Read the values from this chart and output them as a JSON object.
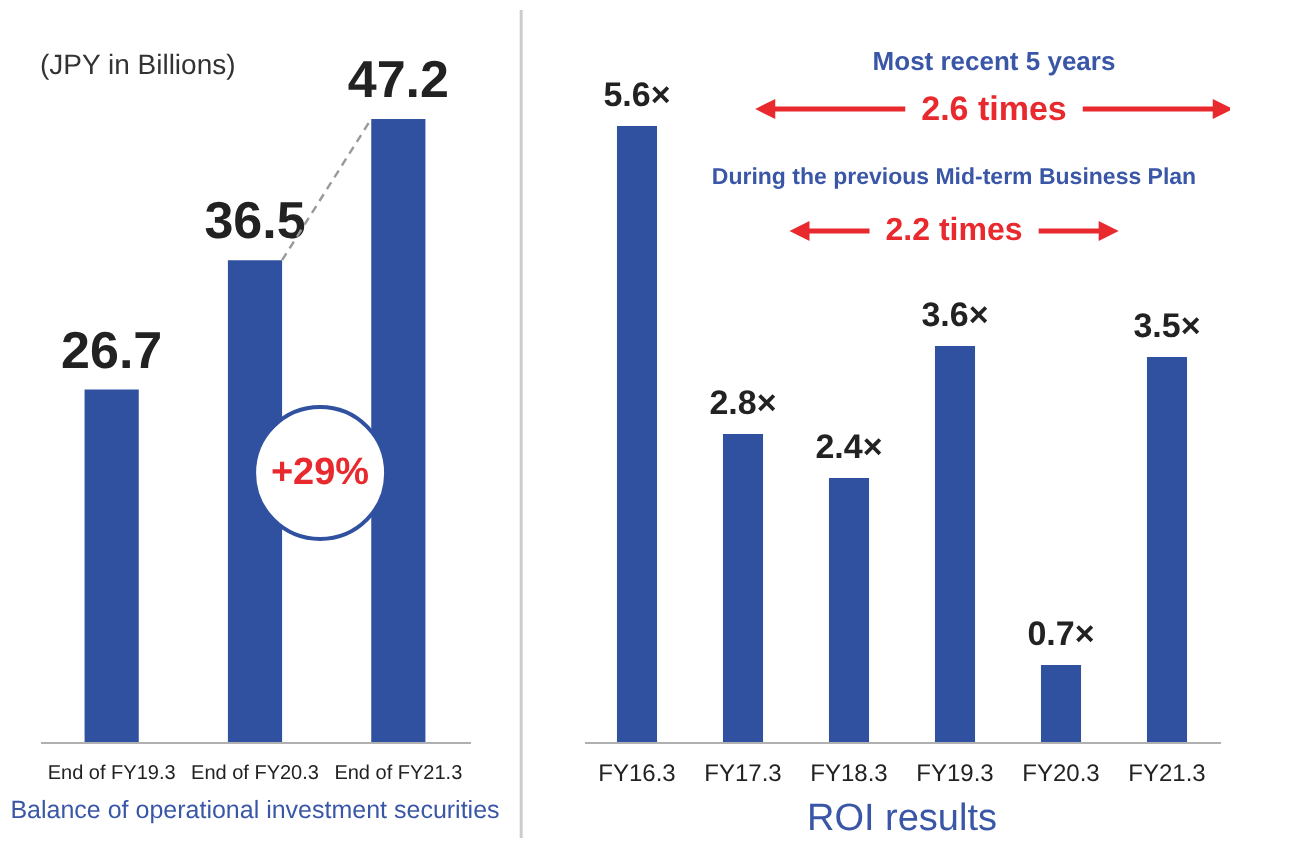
{
  "chart_data": [
    {
      "type": "bar",
      "title": "Balance of operational investment securities",
      "categories": [
        "End of FY19.3",
        "End of FY20.3",
        "End of FY21.3"
      ],
      "values": [
        26.7,
        36.5,
        47.2
      ],
      "color": "#3050a0",
      "data_labels": true,
      "annotations": [
        "(JPY in Billions)",
        "+29%"
      ]
    },
    {
      "type": "bar",
      "title": "ROI results",
      "categories": [
        "FY16.3",
        "FY17.3",
        "FY18.3",
        "FY19.3",
        "FY20.3",
        "FY21.3"
      ],
      "values": [
        5.6,
        2.8,
        2.4,
        3.6,
        0.7,
        3.5
      ],
      "value_labels": [
        "5.6×",
        "2.8×",
        "2.4×",
        "3.6×",
        "0.7×",
        "3.5×"
      ],
      "color": "#3050a0",
      "annotations": [
        "Most recent 5 years",
        "2.6 times",
        "During the previous Mid-term Business Plan",
        "2.2 times"
      ]
    }
  ]
}
